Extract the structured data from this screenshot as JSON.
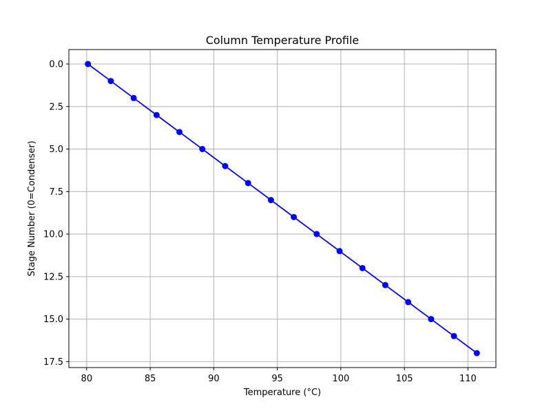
{
  "chart_data": {
    "type": "line",
    "title": "Column Temperature Profile",
    "xlabel": "Temperature (°C)",
    "ylabel": "Stage Number (0=Condenser)",
    "xlim": [
      78.6,
      112.2
    ],
    "ylim": [
      17.85,
      -0.85
    ],
    "y_inverted": true,
    "grid": true,
    "legend": "none",
    "x_ticks": [
      80,
      85,
      90,
      95,
      100,
      105,
      110
    ],
    "x_tick_labels": [
      "80",
      "85",
      "90",
      "95",
      "100",
      "105",
      "110"
    ],
    "y_ticks": [
      0,
      2.5,
      5,
      7.5,
      10,
      12.5,
      15,
      17.5
    ],
    "y_tick_labels": [
      "0.0",
      "2.5",
      "5.0",
      "7.5",
      "10.0",
      "12.5",
      "15.0",
      "17.5"
    ],
    "series": [
      {
        "color": "#0000ff",
        "marker": "circle",
        "x": [
          80.1,
          81.9,
          83.7,
          85.5,
          87.3,
          89.1,
          90.9,
          92.7,
          94.5,
          96.3,
          98.1,
          99.9,
          101.7,
          103.5,
          105.3,
          107.1,
          108.9,
          110.7
        ],
        "y": [
          0,
          1,
          2,
          3,
          4,
          5,
          6,
          7,
          8,
          9,
          10,
          11,
          12,
          13,
          14,
          15,
          16,
          17
        ]
      }
    ]
  }
}
